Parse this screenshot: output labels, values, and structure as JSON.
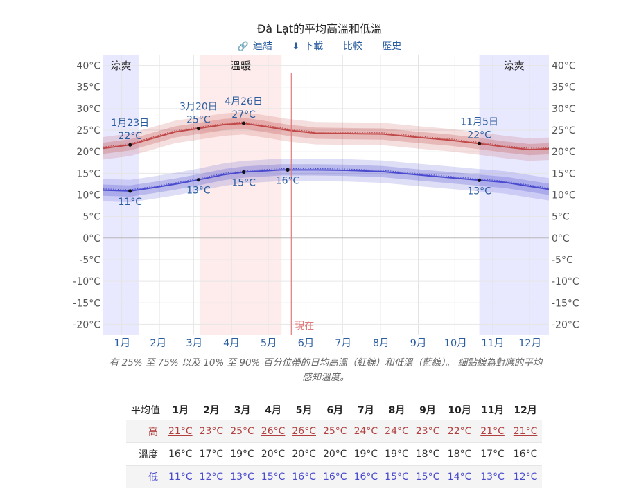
{
  "page": {
    "title": "Đà Lạt的平均高溫和低溫",
    "actions": [
      {
        "label": "連結",
        "icon": "link-icon"
      },
      {
        "label": "下載",
        "icon": "download-icon"
      },
      {
        "label": "比較",
        "icon": ""
      },
      {
        "label": "歷史",
        "icon": ""
      }
    ],
    "caption_line1": "有 25% 至 75% 以及 10% 至 90% 百分位帶的日均高溫（紅線）和低溫（藍線）。 細點線為對應的平均",
    "caption_line2": "感知溫度。"
  },
  "chart_data": {
    "type": "line",
    "x_unit": "day_of_year",
    "xlim": [
      1,
      366
    ],
    "ylim": [
      -22.5,
      42.5
    ],
    "y_ticks": [
      -20,
      -15,
      -10,
      -5,
      0,
      5,
      10,
      15,
      20,
      25,
      30,
      35,
      40
    ],
    "y_tick_labels": [
      "-20°C",
      "-15°C",
      "-10°C",
      "-5°C",
      "0°C",
      "5°C",
      "10°C",
      "15°C",
      "20°C",
      "25°C",
      "30°C",
      "35°C",
      "40°C"
    ],
    "months": [
      "1月",
      "2月",
      "3月",
      "4月",
      "5月",
      "6月",
      "7月",
      "8月",
      "9月",
      "10月",
      "11月",
      "12月"
    ],
    "month_start_days": [
      1,
      32,
      60,
      91,
      121,
      152,
      182,
      213,
      244,
      274,
      305,
      335,
      366
    ],
    "seasons": [
      {
        "label": "涼爽",
        "start_day": 1,
        "end_day": 30,
        "color": "#e8e8ff"
      },
      {
        "label": "溫暖",
        "start_day": 80,
        "end_day": 147,
        "color": "#fdeceb"
      },
      {
        "label": "涼爽",
        "start_day": 309,
        "end_day": 366,
        "color": "#e8e8ff"
      }
    ],
    "now_day": 155,
    "now_label": "現在",
    "series": [
      {
        "name": "高",
        "color": "#c04848",
        "points": [
          [
            1,
            20.8
          ],
          [
            23,
            21.6
          ],
          [
            40,
            23.0
          ],
          [
            60,
            24.6
          ],
          [
            79,
            25.4
          ],
          [
            100,
            26.3
          ],
          [
            116,
            26.6
          ],
          [
            135,
            25.8
          ],
          [
            152,
            25.0
          ],
          [
            175,
            24.3
          ],
          [
            200,
            24.2
          ],
          [
            230,
            24.1
          ],
          [
            260,
            23.3
          ],
          [
            285,
            22.7
          ],
          [
            309,
            21.9
          ],
          [
            330,
            21.1
          ],
          [
            350,
            20.5
          ],
          [
            366,
            20.7
          ]
        ]
      },
      {
        "name": "低",
        "color": "#4a4acf",
        "points": [
          [
            1,
            11.1
          ],
          [
            23,
            10.9
          ],
          [
            40,
            11.6
          ],
          [
            60,
            12.5
          ],
          [
            79,
            13.5
          ],
          [
            100,
            14.7
          ],
          [
            116,
            15.3
          ],
          [
            135,
            15.6
          ],
          [
            146,
            15.8
          ],
          [
            175,
            15.8
          ],
          [
            200,
            15.7
          ],
          [
            230,
            15.4
          ],
          [
            260,
            14.6
          ],
          [
            285,
            14.0
          ],
          [
            309,
            13.4
          ],
          [
            330,
            12.9
          ],
          [
            350,
            12.0
          ],
          [
            366,
            11.3
          ]
        ]
      }
    ],
    "annotations": [
      {
        "day": 23,
        "value": 21.6,
        "date": "1月23日",
        "temp": "22°C",
        "pos": "above"
      },
      {
        "day": 79,
        "value": 25.4,
        "date": "3月20日",
        "temp": "25°C",
        "pos": "above"
      },
      {
        "day": 116,
        "value": 26.6,
        "date": "4月26日",
        "temp": "27°C",
        "pos": "above"
      },
      {
        "day": 309,
        "value": 21.9,
        "date": "11月5日",
        "temp": "22°C",
        "pos": "above"
      },
      {
        "day": 23,
        "value": 10.9,
        "date": "",
        "temp": "11°C",
        "pos": "below"
      },
      {
        "day": 79,
        "value": 13.5,
        "date": "",
        "temp": "13°C",
        "pos": "below"
      },
      {
        "day": 116,
        "value": 15.3,
        "date": "",
        "temp": "15°C",
        "pos": "below"
      },
      {
        "day": 152,
        "value": 15.8,
        "date": "",
        "temp": "16°C",
        "pos": "below"
      },
      {
        "day": 309,
        "value": 13.4,
        "date": "",
        "temp": "13°C",
        "pos": "below"
      }
    ]
  },
  "summary_table": {
    "header_label": "平均值",
    "months": [
      "1月",
      "2月",
      "3月",
      "4月",
      "5月",
      "6月",
      "7月",
      "8月",
      "9月",
      "10月",
      "11月",
      "12月"
    ],
    "rows": [
      {
        "label": "高",
        "cls": "hi",
        "values": [
          "21°C",
          "23°C",
          "25°C",
          "26°C",
          "26°C",
          "25°C",
          "24°C",
          "24°C",
          "23°C",
          "22°C",
          "21°C",
          "21°C"
        ],
        "underline": [
          true,
          false,
          false,
          true,
          true,
          false,
          false,
          false,
          false,
          false,
          true,
          true
        ]
      },
      {
        "label": "溫度",
        "cls": "mid",
        "values": [
          "16°C",
          "17°C",
          "19°C",
          "20°C",
          "20°C",
          "20°C",
          "19°C",
          "19°C",
          "18°C",
          "18°C",
          "17°C",
          "16°C"
        ],
        "underline": [
          true,
          false,
          false,
          true,
          true,
          true,
          false,
          false,
          false,
          false,
          false,
          true
        ]
      },
      {
        "label": "低",
        "cls": "lo",
        "values": [
          "11°C",
          "12°C",
          "13°C",
          "15°C",
          "16°C",
          "16°C",
          "16°C",
          "15°C",
          "15°C",
          "14°C",
          "13°C",
          "12°C"
        ],
        "underline": [
          true,
          false,
          false,
          false,
          true,
          true,
          true,
          false,
          false,
          false,
          false,
          false
        ]
      }
    ]
  }
}
